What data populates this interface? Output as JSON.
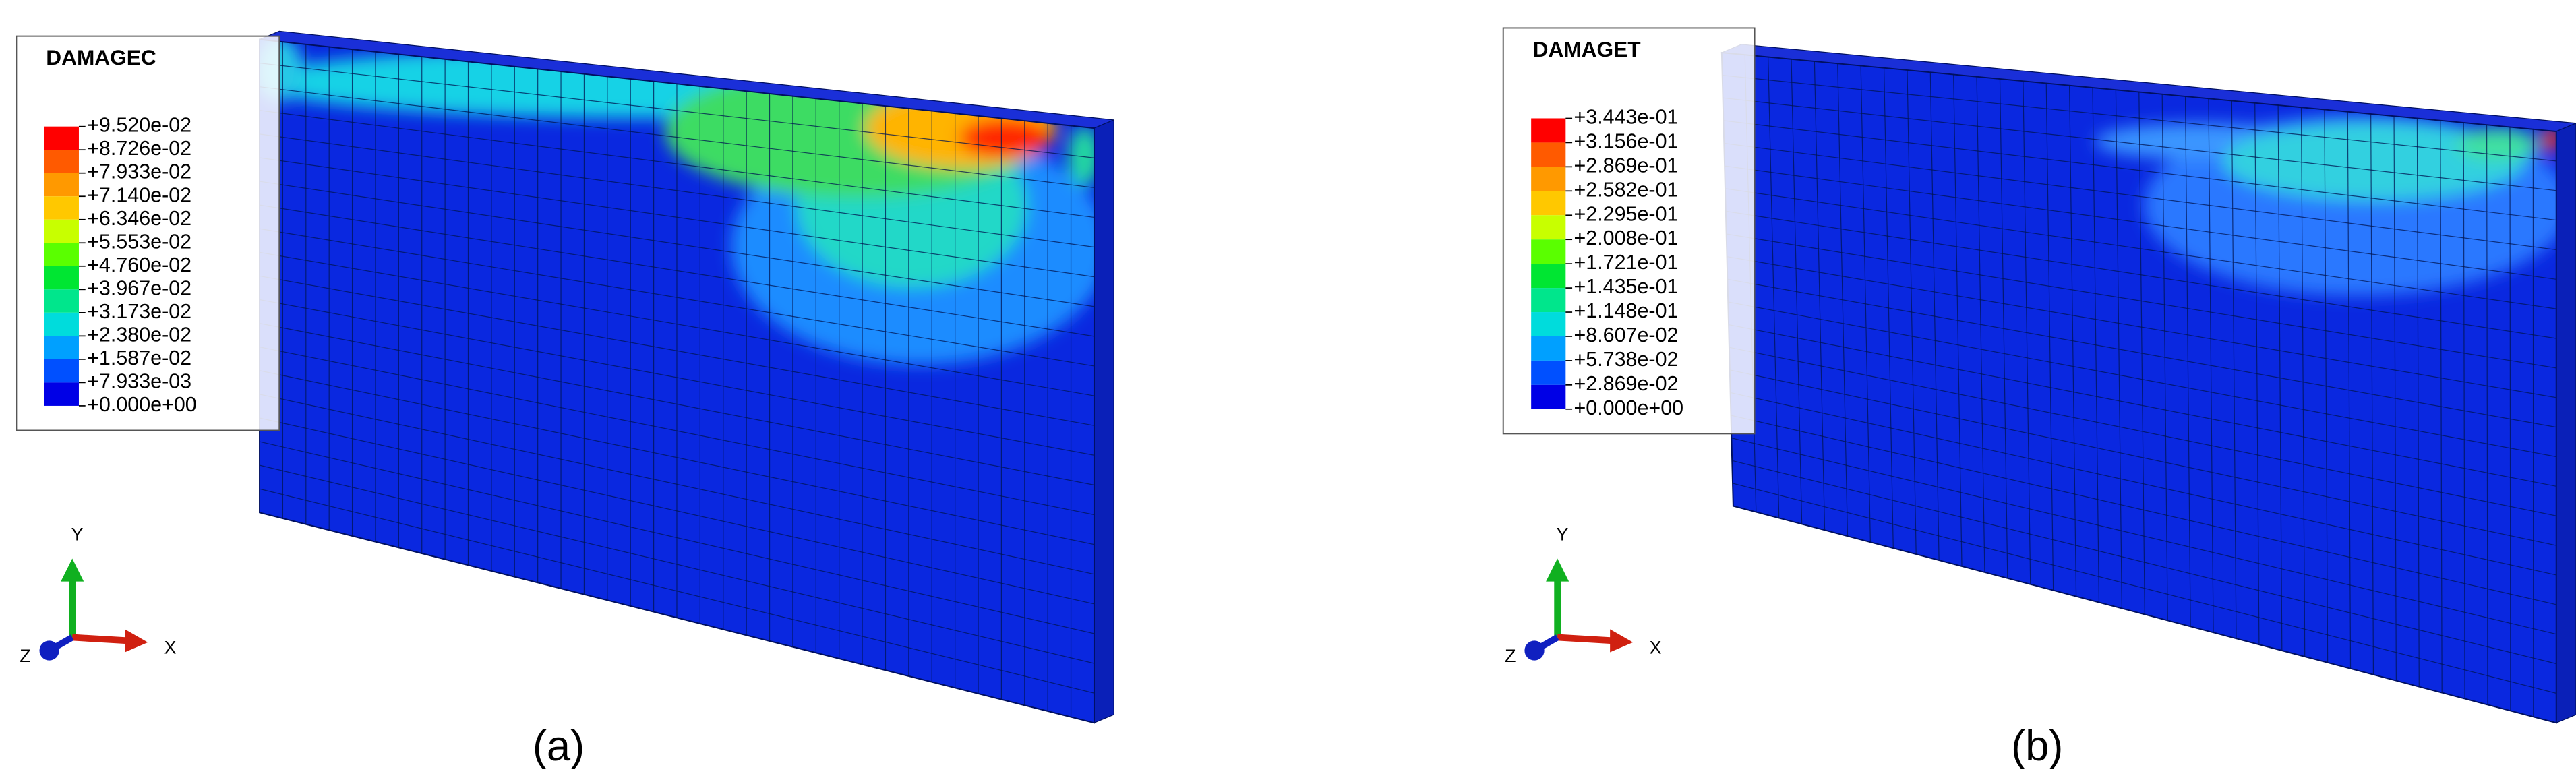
{
  "panels": [
    {
      "legend": {
        "title": "DAMAGEC",
        "labels": [
          "+9.520e-02",
          "+8.726e-02",
          "+7.933e-02",
          "+7.140e-02",
          "+6.346e-02",
          "+5.553e-02",
          "+4.760e-02",
          "+3.967e-02",
          "+3.173e-02",
          "+2.380e-02",
          "+1.587e-02",
          "+7.933e-03",
          "+0.000e+00"
        ]
      },
      "axes": {
        "y": "Y",
        "x": "X",
        "z": "Z"
      },
      "caption": "(a)"
    },
    {
      "legend": {
        "title": "DAMAGET",
        "labels": [
          "+3.443e-01",
          "+3.156e-01",
          "+2.869e-01",
          "+2.582e-01",
          "+2.295e-01",
          "+2.008e-01",
          "+1.721e-01",
          "+1.435e-01",
          "+1.148e-01",
          "+8.607e-02",
          "+5.738e-02",
          "+2.869e-02",
          "+0.000e+00"
        ]
      },
      "axes": {
        "y": "Y",
        "x": "X",
        "z": "Z"
      },
      "caption": "(b)"
    }
  ]
}
